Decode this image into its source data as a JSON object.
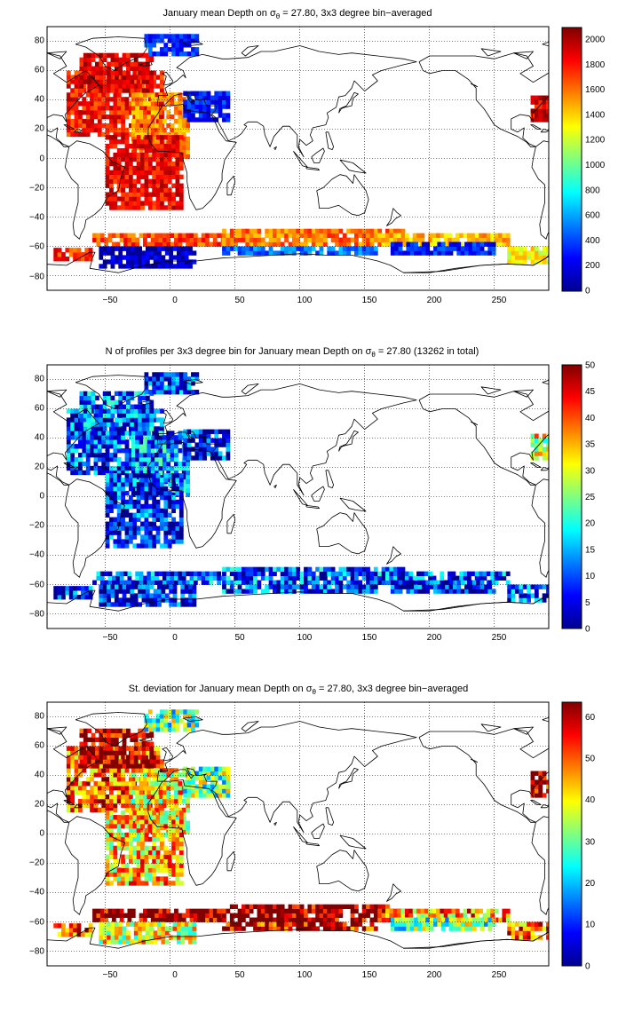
{
  "figure": {
    "panels": [
      {
        "title_pre": "January mean Depth on σ",
        "title_sub": "θ",
        "title_post": " = 27.80, 3x3 degree bin−averaged",
        "xticks": [
          "−50",
          "0",
          "50",
          "100",
          "150",
          "200",
          "250"
        ],
        "yticks": [
          "80",
          "60",
          "40",
          "20",
          "0",
          "−20",
          "−40",
          "−60",
          "−80"
        ],
        "cbar_ticks": [
          "2000",
          "1800",
          "1600",
          "1400",
          "1200",
          "1000",
          "800",
          "600",
          "400",
          "200",
          "0"
        ]
      },
      {
        "title_pre": "N of profiles per 3x3 degree bin for January mean Depth on σ",
        "title_sub": "θ",
        "title_post": " = 27.80 (13262 in total)",
        "xticks": [
          "−50",
          "0",
          "50",
          "100",
          "150",
          "200",
          "250"
        ],
        "yticks": [
          "80",
          "60",
          "40",
          "20",
          "0",
          "−20",
          "−40",
          "−60",
          "−80"
        ],
        "cbar_ticks": [
          "50",
          "45",
          "40",
          "35",
          "30",
          "25",
          "20",
          "15",
          "10",
          "5",
          "0"
        ]
      },
      {
        "title_pre": "St. deviation for January mean Depth on σ",
        "title_sub": "θ",
        "title_post": " = 27.80, 3x3 degree bin−averaged",
        "xticks": [
          "−50",
          "0",
          "50",
          "100",
          "150",
          "200",
          "250"
        ],
        "yticks": [
          "80",
          "60",
          "40",
          "20",
          "0",
          "−20",
          "−40",
          "−60",
          "−80"
        ],
        "cbar_ticks": [
          "60",
          "50",
          "40",
          "30",
          "20",
          "10",
          "0"
        ]
      }
    ]
  },
  "chart_data": [
    {
      "type": "heatmap",
      "title": "January mean Depth on σθ = 27.80, 3x3 degree bin−averaged",
      "xlim": [
        -95,
        292
      ],
      "ylim": [
        -90,
        90
      ],
      "colorbar_range": [
        0,
        2100
      ],
      "colormap": "jet",
      "regions": [
        {
          "lon": [
            -80,
            -5
          ],
          "lat": [
            15,
            60
          ],
          "value": 1800
        },
        {
          "lon": [
            -30,
            15
          ],
          "lat": [
            0,
            45
          ],
          "value": 1550
        },
        {
          "lon": [
            -70,
            -15
          ],
          "lat": [
            45,
            70
          ],
          "value": 1900
        },
        {
          "lon": [
            -50,
            10
          ],
          "lat": [
            -35,
            15
          ],
          "value": 1850
        },
        {
          "lon": [
            -90,
            -60
          ],
          "lat": [
            -70,
            -62
          ],
          "value": 1750
        },
        {
          "lon": [
            -60,
            40
          ],
          "lat": [
            -60,
            -52
          ],
          "value": 1700
        },
        {
          "lon": [
            -55,
            20
          ],
          "lat": [
            -75,
            -62
          ],
          "value": 120
        },
        {
          "lon": [
            40,
            180
          ],
          "lat": [
            -60,
            -50
          ],
          "value": 1600
        },
        {
          "lon": [
            40,
            160
          ],
          "lat": [
            -66,
            -60
          ],
          "value": 500
        },
        {
          "lon": [
            160,
            260
          ],
          "lat": [
            -60,
            -52
          ],
          "value": 1450
        },
        {
          "lon": [
            170,
            250
          ],
          "lat": [
            -66,
            -58
          ],
          "value": 300
        },
        {
          "lon": [
            260,
            292
          ],
          "lat": [
            -72,
            -62
          ],
          "value": 1300
        },
        {
          "lon": [
            -20,
            20
          ],
          "lat": [
            70,
            85
          ],
          "value": 350
        },
        {
          "lon": [
            278,
            292
          ],
          "lat": [
            25,
            42
          ],
          "value": 1900
        },
        {
          "lon": [
            10,
            45
          ],
          "lat": [
            25,
            45
          ],
          "value": 300
        }
      ]
    },
    {
      "type": "heatmap",
      "title": "N of profiles per 3x3 degree bin for January mean Depth on σθ = 27.80 (13262 in total)",
      "xlim": [
        -95,
        292
      ],
      "ylim": [
        -90,
        90
      ],
      "colorbar_range": [
        0,
        50
      ],
      "colormap": "jet",
      "total_profiles": 13262,
      "regions": [
        {
          "lon": [
            -80,
            -5
          ],
          "lat": [
            15,
            60
          ],
          "value": 8
        },
        {
          "lon": [
            -30,
            15
          ],
          "lat": [
            0,
            45
          ],
          "value": 12
        },
        {
          "lon": [
            -70,
            -15
          ],
          "lat": [
            45,
            70
          ],
          "value": 10
        },
        {
          "lon": [
            -50,
            10
          ],
          "lat": [
            -35,
            15
          ],
          "value": 7
        },
        {
          "lon": [
            -90,
            -60
          ],
          "lat": [
            -70,
            -62
          ],
          "value": 6
        },
        {
          "lon": [
            -60,
            40
          ],
          "lat": [
            -60,
            -52
          ],
          "value": 9
        },
        {
          "lon": [
            -55,
            20
          ],
          "lat": [
            -75,
            -62
          ],
          "value": 5
        },
        {
          "lon": [
            40,
            180
          ],
          "lat": [
            -60,
            -50
          ],
          "value": 10
        },
        {
          "lon": [
            40,
            160
          ],
          "lat": [
            -66,
            -60
          ],
          "value": 8
        },
        {
          "lon": [
            160,
            260
          ],
          "lat": [
            -60,
            -52
          ],
          "value": 9
        },
        {
          "lon": [
            170,
            250
          ],
          "lat": [
            -66,
            -58
          ],
          "value": 6
        },
        {
          "lon": [
            260,
            292
          ],
          "lat": [
            -72,
            -62
          ],
          "value": 8
        },
        {
          "lon": [
            -20,
            20
          ],
          "lat": [
            70,
            85
          ],
          "value": 7
        },
        {
          "lon": [
            278,
            292
          ],
          "lat": [
            25,
            42
          ],
          "value": 30
        },
        {
          "lon": [
            10,
            45
          ],
          "lat": [
            25,
            45
          ],
          "value": 6
        }
      ]
    },
    {
      "type": "heatmap",
      "title": "St. deviation for January mean Depth on σθ = 27.80, 3x3 degree bin−averaged",
      "xlim": [
        -95,
        292
      ],
      "ylim": [
        -90,
        90
      ],
      "colorbar_range": [
        0,
        63
      ],
      "colormap": "jet",
      "regions": [
        {
          "lon": [
            -80,
            -5
          ],
          "lat": [
            15,
            60
          ],
          "value": 50
        },
        {
          "lon": [
            -30,
            15
          ],
          "lat": [
            0,
            45
          ],
          "value": 40
        },
        {
          "lon": [
            -70,
            -15
          ],
          "lat": [
            45,
            70
          ],
          "value": 62
        },
        {
          "lon": [
            -50,
            10
          ],
          "lat": [
            -35,
            15
          ],
          "value": 42
        },
        {
          "lon": [
            -90,
            -60
          ],
          "lat": [
            -70,
            -62
          ],
          "value": 50
        },
        {
          "lon": [
            -60,
            40
          ],
          "lat": [
            -60,
            -52
          ],
          "value": 62
        },
        {
          "lon": [
            -55,
            20
          ],
          "lat": [
            -75,
            -62
          ],
          "value": 38
        },
        {
          "lon": [
            40,
            180
          ],
          "lat": [
            -60,
            -50
          ],
          "value": 63
        },
        {
          "lon": [
            40,
            160
          ],
          "lat": [
            -66,
            -60
          ],
          "value": 58
        },
        {
          "lon": [
            160,
            260
          ],
          "lat": [
            -60,
            -52
          ],
          "value": 45
        },
        {
          "lon": [
            170,
            250
          ],
          "lat": [
            -66,
            -58
          ],
          "value": 30
        },
        {
          "lon": [
            260,
            292
          ],
          "lat": [
            -72,
            -62
          ],
          "value": 50
        },
        {
          "lon": [
            -20,
            20
          ],
          "lat": [
            70,
            85
          ],
          "value": 30
        },
        {
          "lon": [
            278,
            292
          ],
          "lat": [
            25,
            42
          ],
          "value": 60
        },
        {
          "lon": [
            10,
            45
          ],
          "lat": [
            25,
            45
          ],
          "value": 30
        }
      ]
    }
  ]
}
